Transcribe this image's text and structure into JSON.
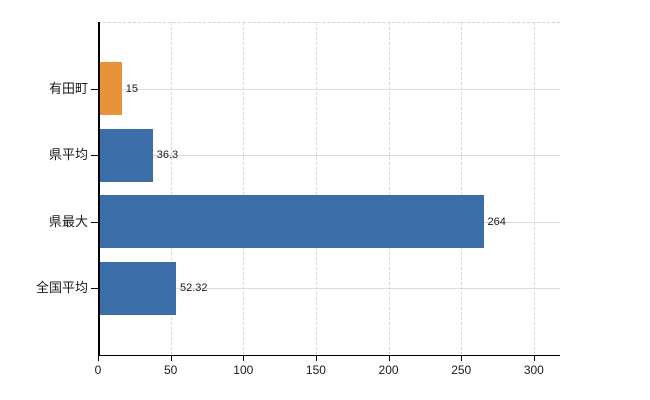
{
  "colors": {
    "bar_blue": "#3B6DA9",
    "bar_orange": "#E8923A",
    "grid": "#d9ddd9",
    "axis": "#000000",
    "text": "#1a1a1a",
    "background": "#ffffff"
  },
  "chart_data": {
    "type": "bar",
    "orientation": "horizontal",
    "title": "",
    "xlabel": "",
    "ylabel": "",
    "categories": [
      "有田町",
      "県平均",
      "県最大",
      "全国平均"
    ],
    "values": [
      15,
      36.3,
      264,
      52.32
    ],
    "value_labels": [
      "15",
      "36.3",
      "264",
      "52.32"
    ],
    "bar_colors": [
      "#E8923A",
      "#3B6DA9",
      "#3B6DA9",
      "#3B6DA9"
    ],
    "x_ticks": [
      0,
      50,
      100,
      150,
      200,
      250,
      300
    ],
    "xlim": [
      0,
      318
    ],
    "grid": true,
    "legend_position": "none"
  }
}
